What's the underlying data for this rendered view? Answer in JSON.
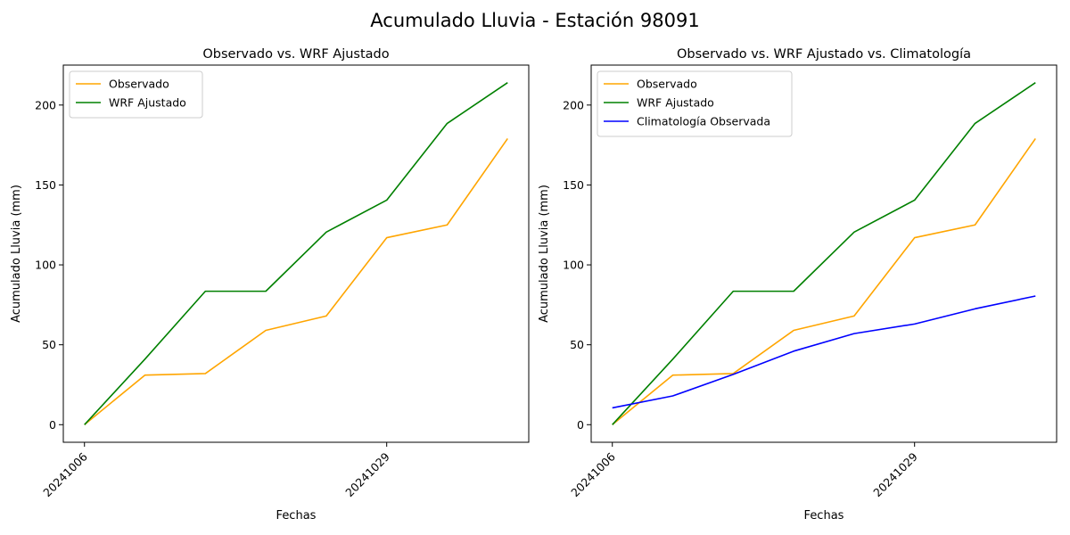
{
  "figure_title": "Acumulado Lluvia - Estación 98091",
  "colors": {
    "observado": "#FFA500",
    "wrf": "#008000",
    "climatologia": "#0000FF"
  },
  "chart_data": [
    {
      "type": "line",
      "title": "Observado vs. WRF Ajustado",
      "xlabel": "Fechas",
      "ylabel": "Acumulado Lluvia (mm)",
      "x_tick_labels": [
        "20241006",
        "20241029"
      ],
      "x_tick_index": [
        0,
        5
      ],
      "y_ticks": [
        0,
        50,
        100,
        150,
        200
      ],
      "ylim": [
        -11,
        225
      ],
      "legend_position": "upper-left",
      "series": [
        {
          "name": "Observado",
          "color": "#FFA500",
          "values": [
            0,
            31,
            32,
            59,
            68,
            117,
            125,
            179
          ]
        },
        {
          "name": "WRF Ajustado",
          "color": "#008000",
          "values": [
            0,
            41,
            83.5,
            83.5,
            120.5,
            140.5,
            188.5,
            214
          ]
        }
      ]
    },
    {
      "type": "line",
      "title": "Observado vs. WRF Ajustado vs. Climatología",
      "xlabel": "Fechas",
      "ylabel": "Acumulado Lluvia (mm)",
      "x_tick_labels": [
        "20241006",
        "20241029"
      ],
      "x_tick_index": [
        0,
        5
      ],
      "y_ticks": [
        0,
        50,
        100,
        150,
        200
      ],
      "ylim": [
        -11,
        225
      ],
      "legend_position": "upper-left",
      "series": [
        {
          "name": "Observado",
          "color": "#FFA500",
          "values": [
            0,
            31,
            32,
            59,
            68,
            117,
            125,
            179
          ]
        },
        {
          "name": "WRF Ajustado",
          "color": "#008000",
          "values": [
            0,
            41,
            83.5,
            83.5,
            120.5,
            140.5,
            188.5,
            214
          ]
        },
        {
          "name": "Climatología Observada",
          "color": "#0000FF",
          "values": [
            10.5,
            18,
            31.5,
            46,
            57,
            63,
            72.5,
            80.5
          ]
        }
      ]
    }
  ]
}
